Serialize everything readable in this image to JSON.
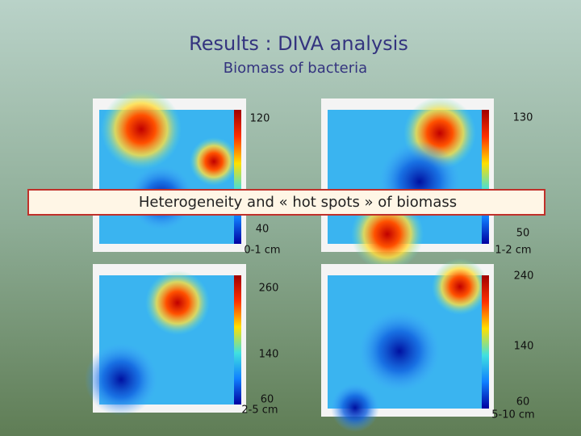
{
  "header": {
    "title": "Results : DIVA analysis",
    "subtitle": "Biomass of bacteria"
  },
  "banner": "Heterogeneity and « hot spots » of biomass",
  "panels": [
    {
      "scale_labels": [
        120,
        40
      ],
      "depth": "0-1 cm"
    },
    {
      "scale_labels": [
        130,
        50
      ],
      "depth": "1-2 cm"
    },
    {
      "scale_labels": [
        260,
        140,
        60
      ],
      "depth": "2-5 cm"
    },
    {
      "scale_labels": [
        240,
        140,
        60
      ],
      "depth": "5-10 cm"
    }
  ]
}
